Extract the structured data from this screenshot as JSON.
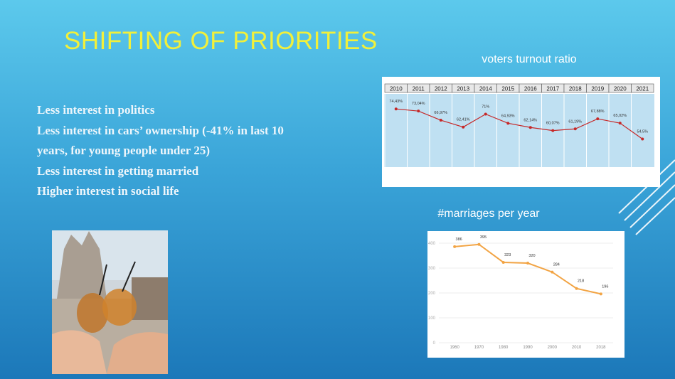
{
  "slide": {
    "title": "SHIFTING OF PRIORITIES",
    "bullets": [
      "Less interest in politics",
      "Less interest in cars’ ownership (-41% in last 10 years, for young people under 25)",
      "Less interest in getting married",
      "Higher interest in social life"
    ]
  },
  "chart_data": [
    {
      "type": "line",
      "title": "voters turnout ratio",
      "categories": [
        "2010",
        "2011",
        "2012",
        "2013",
        "2014",
        "2015",
        "2016",
        "2017",
        "2018",
        "2019",
        "2020",
        "2021"
      ],
      "series": [
        {
          "color": "#c62828",
          "values": [
            74.43,
            73.04,
            66.97,
            62.41,
            71,
            64.93,
            62.14,
            60.07,
            61.19,
            67.88,
            65.02,
            54.5
          ],
          "value_labels": [
            "74,43%",
            "73,04%",
            "66,97%",
            "62,41%",
            "71%",
            "64,93%",
            "62,14%",
            "60,07%",
            "61,19%",
            "67,88%",
            "65,02%",
            "54,5%"
          ]
        }
      ]
    },
    {
      "type": "line",
      "title": "#marriages per year",
      "categories": [
        "1960",
        "1970",
        "1980",
        "1990",
        "2000",
        "2010",
        "2018"
      ],
      "series": [
        {
          "color": "#f2a444",
          "values": [
            386,
            395,
            323,
            320,
            284,
            218,
            196
          ]
        }
      ],
      "ylim": [
        0,
        420
      ],
      "yticks": [
        0,
        100,
        200,
        300,
        400
      ],
      "grid": true
    }
  ]
}
